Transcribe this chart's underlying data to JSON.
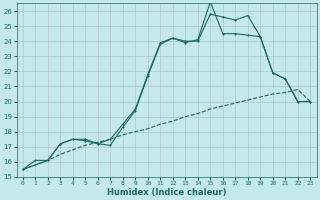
{
  "xlabel": "Humidex (Indice chaleur)",
  "bg_color": "#c5e8e8",
  "grid_color": "#b0c8c8",
  "line_color": "#1a6b5a",
  "xlim": [
    -0.5,
    23.5
  ],
  "ylim": [
    15,
    26.5
  ],
  "yticks": [
    15,
    16,
    17,
    18,
    19,
    20,
    21,
    22,
    23,
    24,
    25,
    26
  ],
  "xticks": [
    0,
    1,
    2,
    3,
    4,
    5,
    6,
    7,
    8,
    9,
    10,
    11,
    12,
    13,
    14,
    15,
    16,
    17,
    18,
    19,
    20,
    21,
    22,
    23
  ],
  "line1_x": [
    0,
    1,
    2,
    3,
    4,
    5,
    6,
    7,
    8,
    9,
    10,
    11,
    12,
    13,
    14,
    15,
    16,
    17,
    18,
    19,
    20,
    21,
    22,
    23
  ],
  "line1_y": [
    15.5,
    16.1,
    16.1,
    17.2,
    17.5,
    17.5,
    17.2,
    17.1,
    18.3,
    19.4,
    21.7,
    23.8,
    24.2,
    23.9,
    24.1,
    26.6,
    24.5,
    24.5,
    24.4,
    24.3,
    21.9,
    21.5,
    20.0,
    20.0
  ],
  "line2_x": [
    0,
    2,
    3,
    4,
    5,
    6,
    7,
    8,
    9,
    10,
    11,
    12,
    13,
    14,
    15,
    16,
    17,
    18,
    19,
    20,
    21,
    22,
    23
  ],
  "line2_y": [
    15.5,
    16.1,
    17.2,
    17.5,
    17.4,
    17.2,
    17.5,
    18.5,
    19.5,
    21.8,
    23.9,
    24.2,
    24.0,
    24.0,
    25.8,
    25.6,
    25.4,
    25.7,
    24.3,
    21.9,
    21.5,
    20.0,
    20.0
  ],
  "line3_x": [
    0,
    1,
    2,
    3,
    4,
    5,
    6,
    7,
    8,
    9,
    10,
    11,
    12,
    13,
    14,
    15,
    16,
    17,
    18,
    19,
    20,
    21,
    22,
    23
  ],
  "line3_y": [
    15.5,
    15.8,
    16.1,
    16.5,
    16.8,
    17.1,
    17.3,
    17.5,
    17.8,
    18.0,
    18.2,
    18.5,
    18.7,
    19.0,
    19.2,
    19.5,
    19.7,
    19.9,
    20.1,
    20.3,
    20.5,
    20.6,
    20.8,
    20.0
  ]
}
